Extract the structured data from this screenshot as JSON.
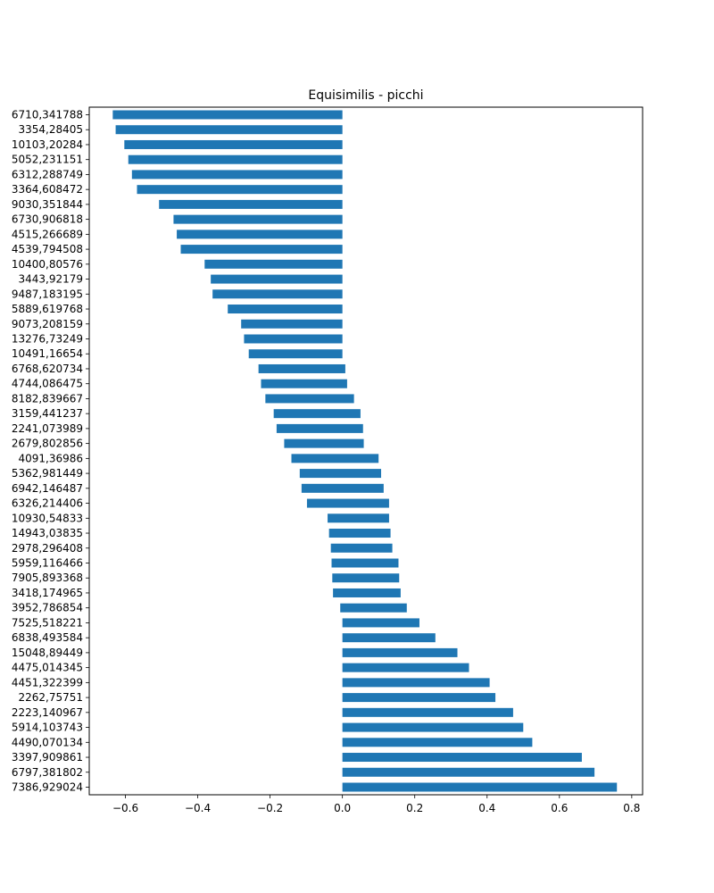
{
  "chart_data": {
    "type": "bar",
    "orientation": "horizontal",
    "title": "Equisimilis - picchi",
    "xlabel": "",
    "ylabel": "",
    "xlim": [
      -0.7,
      0.83
    ],
    "xticks": [
      -0.6,
      -0.4,
      -0.2,
      0.0,
      0.2,
      0.4,
      0.6,
      0.8
    ],
    "xtick_labels": [
      "−0.6",
      "−0.4",
      "−0.2",
      "0.0",
      "0.2",
      "0.4",
      "0.6",
      "0.8"
    ],
    "grid": false,
    "color": "#1f77b4",
    "bars": [
      {
        "label": "6710,341788",
        "start": -0.635,
        "end": 0
      },
      {
        "label": "3354,28405",
        "start": -0.627,
        "end": 0
      },
      {
        "label": "10103,20284",
        "start": -0.603,
        "end": 0
      },
      {
        "label": "5052,231151",
        "start": -0.592,
        "end": 0
      },
      {
        "label": "6312,288749",
        "start": -0.582,
        "end": 0
      },
      {
        "label": "3364,608472",
        "start": -0.568,
        "end": 0
      },
      {
        "label": "9030,351844",
        "start": -0.507,
        "end": 0
      },
      {
        "label": "6730,906818",
        "start": -0.467,
        "end": 0
      },
      {
        "label": "4515,266689",
        "start": -0.458,
        "end": 0
      },
      {
        "label": "4539,794508",
        "start": -0.447,
        "end": 0
      },
      {
        "label": "10400,80576",
        "start": -0.381,
        "end": 0
      },
      {
        "label": "3443,92179",
        "start": -0.364,
        "end": 0
      },
      {
        "label": "9487,183195",
        "start": -0.359,
        "end": 0
      },
      {
        "label": "5889,619768",
        "start": -0.317,
        "end": 0
      },
      {
        "label": "9073,208159",
        "start": -0.28,
        "end": 0
      },
      {
        "label": "13276,73249",
        "start": -0.272,
        "end": 0
      },
      {
        "label": "10491,16654",
        "start": -0.259,
        "end": 0
      },
      {
        "label": "6768,620734",
        "start": -0.232,
        "end": 0.008
      },
      {
        "label": "4744,086475",
        "start": -0.225,
        "end": 0.013
      },
      {
        "label": "8182,839667",
        "start": -0.213,
        "end": 0.032
      },
      {
        "label": "3159,441237",
        "start": -0.19,
        "end": 0.05
      },
      {
        "label": "2241,073989",
        "start": -0.182,
        "end": 0.057
      },
      {
        "label": "2679,802856",
        "start": -0.161,
        "end": 0.059
      },
      {
        "label": "4091,36986",
        "start": -0.141,
        "end": 0.1
      },
      {
        "label": "5362,981449",
        "start": -0.118,
        "end": 0.107
      },
      {
        "label": "6942,146487",
        "start": -0.113,
        "end": 0.114
      },
      {
        "label": "6326,214406",
        "start": -0.098,
        "end": 0.129
      },
      {
        "label": "10930,54833",
        "start": -0.041,
        "end": 0.129
      },
      {
        "label": "14943,03835",
        "start": -0.037,
        "end": 0.133
      },
      {
        "label": "2978,296408",
        "start": -0.032,
        "end": 0.138
      },
      {
        "label": "5959,116466",
        "start": -0.03,
        "end": 0.155
      },
      {
        "label": "7905,893368",
        "start": -0.028,
        "end": 0.157
      },
      {
        "label": "3418,174965",
        "start": -0.026,
        "end": 0.161
      },
      {
        "label": "3952,786854",
        "start": -0.006,
        "end": 0.178
      },
      {
        "label": "7525,518221",
        "start": 0,
        "end": 0.213
      },
      {
        "label": "6838,493584",
        "start": 0,
        "end": 0.257
      },
      {
        "label": "15048,89449",
        "start": 0,
        "end": 0.318
      },
      {
        "label": "4475,014345",
        "start": 0,
        "end": 0.35
      },
      {
        "label": "4451,322399",
        "start": 0,
        "end": 0.407
      },
      {
        "label": "2262,75751",
        "start": 0,
        "end": 0.423
      },
      {
        "label": "2223,140967",
        "start": 0,
        "end": 0.472
      },
      {
        "label": "5914,103743",
        "start": 0,
        "end": 0.5
      },
      {
        "label": "4490,070134",
        "start": 0,
        "end": 0.525
      },
      {
        "label": "3397,909861",
        "start": 0,
        "end": 0.662
      },
      {
        "label": "6797,381802",
        "start": 0,
        "end": 0.697
      },
      {
        "label": "7386,929024",
        "start": 0,
        "end": 0.759
      }
    ]
  }
}
